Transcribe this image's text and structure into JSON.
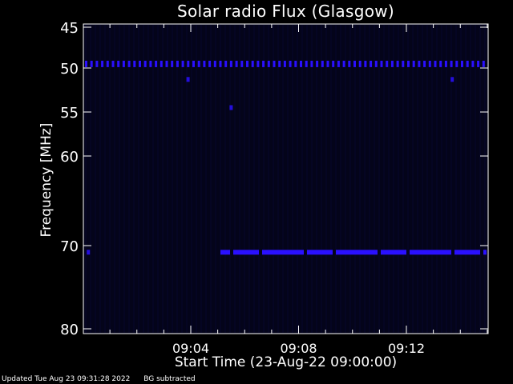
{
  "chart_data": {
    "type": "heatmap",
    "title": "Solar radio Flux (Glasgow)",
    "xlabel": "Start Time (23-Aug-22 09:00:00)",
    "ylabel": "Frequency [MHz]",
    "x_range_minutes": [
      0,
      16
    ],
    "x_ticks": [
      {
        "minute": 4,
        "label": "09:04"
      },
      {
        "minute": 8,
        "label": "09:08"
      },
      {
        "minute": 12,
        "label": "09:12"
      }
    ],
    "y_range": [
      45,
      80
    ],
    "y_ticks": [
      {
        "freq": 45,
        "label": "45"
      },
      {
        "freq": 50,
        "label": "50"
      },
      {
        "freq": 55,
        "label": "55"
      },
      {
        "freq": 60,
        "label": "60"
      },
      {
        "freq": 70,
        "label": "70"
      },
      {
        "freq": 80,
        "label": "80"
      }
    ],
    "bands": [
      {
        "freq": 49.5,
        "start_minute": 0.0,
        "end_minute": 14.9,
        "pattern": "dotted"
      },
      {
        "freq": 70.8,
        "start_minute": 5.1,
        "end_minute": 14.9,
        "pattern": "solid"
      }
    ],
    "spots": [
      {
        "freq": 70.8,
        "minute": 0.2
      },
      {
        "freq": 51.3,
        "minute": 3.9
      },
      {
        "freq": 51.3,
        "minute": 13.7
      },
      {
        "freq": 54.5,
        "minute": 5.5
      }
    ],
    "colors": {
      "background": "#000000",
      "plot_background": "#04041a",
      "emission": "#2a10ff",
      "axes": "#ffffff"
    }
  },
  "footer": {
    "updated": "Updated Tue Aug 23 09:31:28 2022",
    "note": "BG subtracted"
  }
}
